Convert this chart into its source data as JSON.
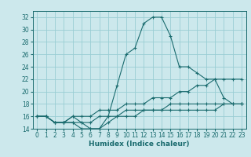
{
  "xlabel": "Humidex (Indice chaleur)",
  "bg_color": "#cce8ec",
  "grid_color": "#99cdd4",
  "line_color": "#1a6b6e",
  "xlim": [
    -0.5,
    23.5
  ],
  "ylim": [
    14,
    33
  ],
  "xticks": [
    0,
    1,
    2,
    3,
    4,
    5,
    6,
    7,
    8,
    9,
    10,
    11,
    12,
    13,
    14,
    15,
    16,
    17,
    18,
    19,
    20,
    21,
    22,
    23
  ],
  "yticks": [
    14,
    16,
    18,
    20,
    22,
    24,
    26,
    28,
    30,
    32
  ],
  "lines": [
    {
      "x": [
        0,
        1,
        2,
        3,
        4,
        5,
        6,
        7,
        8,
        9,
        10,
        11,
        12,
        13,
        14,
        15,
        16,
        17,
        18,
        19,
        20,
        21,
        22,
        23
      ],
      "y": [
        16,
        16,
        15,
        15,
        15,
        14,
        14,
        14,
        16,
        21,
        26,
        27,
        31,
        32,
        32,
        29,
        24,
        24,
        23,
        22,
        22,
        19,
        18,
        18
      ]
    },
    {
      "x": [
        0,
        1,
        2,
        3,
        4,
        5,
        6,
        7,
        8,
        9,
        10,
        11,
        12,
        13,
        14,
        15,
        16,
        17,
        18,
        19,
        20,
        21,
        22,
        23
      ],
      "y": [
        16,
        16,
        15,
        15,
        16,
        16,
        16,
        17,
        17,
        17,
        18,
        18,
        18,
        19,
        19,
        19,
        20,
        20,
        21,
        21,
        22,
        22,
        22,
        22
      ]
    },
    {
      "x": [
        0,
        1,
        2,
        3,
        4,
        5,
        6,
        7,
        8,
        9,
        10,
        11,
        12,
        13,
        14,
        15,
        16,
        17,
        18,
        19,
        20,
        21,
        22,
        23
      ],
      "y": [
        16,
        16,
        15,
        15,
        16,
        15,
        15,
        16,
        16,
        16,
        17,
        17,
        17,
        17,
        17,
        18,
        18,
        18,
        18,
        18,
        18,
        18,
        18,
        18
      ]
    },
    {
      "x": [
        0,
        1,
        2,
        3,
        4,
        5,
        6,
        7,
        8,
        9,
        10,
        11,
        12,
        13,
        14,
        15,
        16,
        17,
        18,
        19,
        20,
        21,
        22,
        23
      ],
      "y": [
        16,
        16,
        15,
        15,
        15,
        15,
        14,
        14,
        15,
        16,
        16,
        16,
        17,
        17,
        17,
        17,
        17,
        17,
        17,
        17,
        17,
        18,
        18,
        18
      ]
    }
  ],
  "tick_fontsize": 5.5,
  "xlabel_fontsize": 6.5,
  "title_fontsize": 6.5
}
